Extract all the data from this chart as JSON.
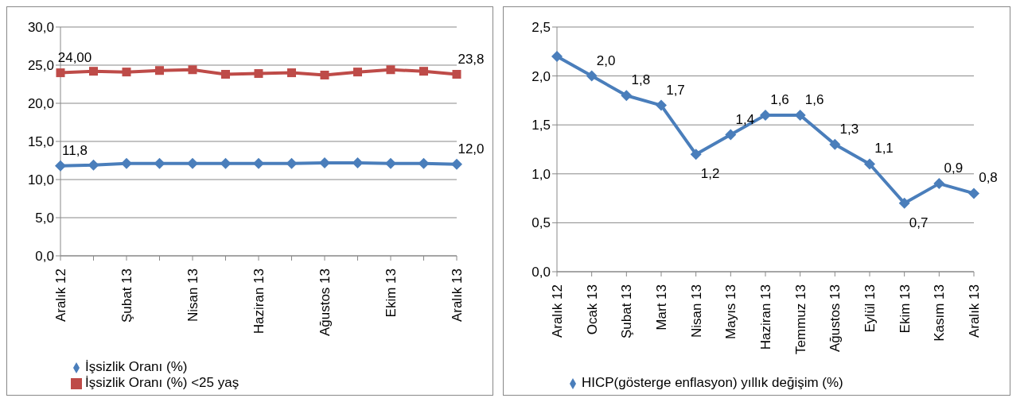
{
  "chart_data": [
    {
      "type": "line",
      "categories": [
        "Aralık 12",
        null,
        "Şubat 13",
        null,
        "Nisan 13",
        null,
        "Haziran 13",
        null,
        "Ağustos 13",
        null,
        "Ekim 13",
        null,
        "Aralık 13"
      ],
      "series": [
        {
          "name": "İşsizlik Oranı (%)",
          "color": "#4a7ebb",
          "marker": "diamond",
          "values": [
            11.8,
            11.9,
            12.1,
            12.1,
            12.1,
            12.1,
            12.1,
            12.1,
            12.2,
            12.2,
            12.1,
            12.1,
            12.0
          ],
          "value_labels": [
            "11,8",
            null,
            null,
            null,
            null,
            null,
            null,
            null,
            null,
            null,
            null,
            null,
            "12,0"
          ]
        },
        {
          "name": "İşsizlik Oranı (%) <25 yaş",
          "color": "#be4b48",
          "marker": "square",
          "values": [
            24.0,
            24.2,
            24.1,
            24.3,
            24.4,
            23.8,
            23.9,
            24.0,
            23.7,
            24.1,
            24.4,
            24.2,
            23.8
          ],
          "value_labels": [
            "24,00",
            null,
            null,
            null,
            null,
            null,
            null,
            null,
            null,
            null,
            null,
            null,
            "23,8"
          ]
        }
      ],
      "ylim": [
        0,
        30
      ],
      "yticks": [
        {
          "value": 0,
          "label": "0,0"
        },
        {
          "value": 5,
          "label": "5,0"
        },
        {
          "value": 10,
          "label": "10,0"
        },
        {
          "value": 15,
          "label": "15,0"
        },
        {
          "value": 20,
          "label": "20,0"
        },
        {
          "value": 25,
          "label": "25,0"
        },
        {
          "value": 30,
          "label": "30,0"
        }
      ],
      "grid": "y",
      "legend": "bottom"
    },
    {
      "type": "line",
      "categories": [
        "Aralık 12",
        "Ocak 13",
        "Şubat 13",
        "Mart 13",
        "Nisan 13",
        "Mayıs 13",
        "Haziran 13",
        "Temmuz 13",
        "Ağustos 13",
        "Eylül 13",
        "Ekim 13",
        "Kasım 13",
        "Aralık 13"
      ],
      "series": [
        {
          "name": "HICP(gösterge enflasyon) yıllık değişim  (%)",
          "color": "#4a7ebb",
          "marker": "diamond",
          "values": [
            2.2,
            2.0,
            1.8,
            1.7,
            1.2,
            1.4,
            1.6,
            1.6,
            1.3,
            1.1,
            0.7,
            0.9,
            0.8
          ],
          "value_labels": [
            null,
            "2,0",
            "1,8",
            "1,7",
            "1,2",
            "1,4",
            "1,6",
            "1,6",
            "1,3",
            "1,1",
            "0,7",
            "0,9",
            "0,8"
          ]
        }
      ],
      "ylim": [
        0,
        2.5
      ],
      "yticks": [
        {
          "value": 0,
          "label": "0,0"
        },
        {
          "value": 0.5,
          "label": "0,5"
        },
        {
          "value": 1,
          "label": "1,0"
        },
        {
          "value": 1.5,
          "label": "1,5"
        },
        {
          "value": 2,
          "label": "2,0"
        },
        {
          "value": 2.5,
          "label": "2,5"
        }
      ],
      "grid": "y",
      "legend": "bottom"
    }
  ]
}
